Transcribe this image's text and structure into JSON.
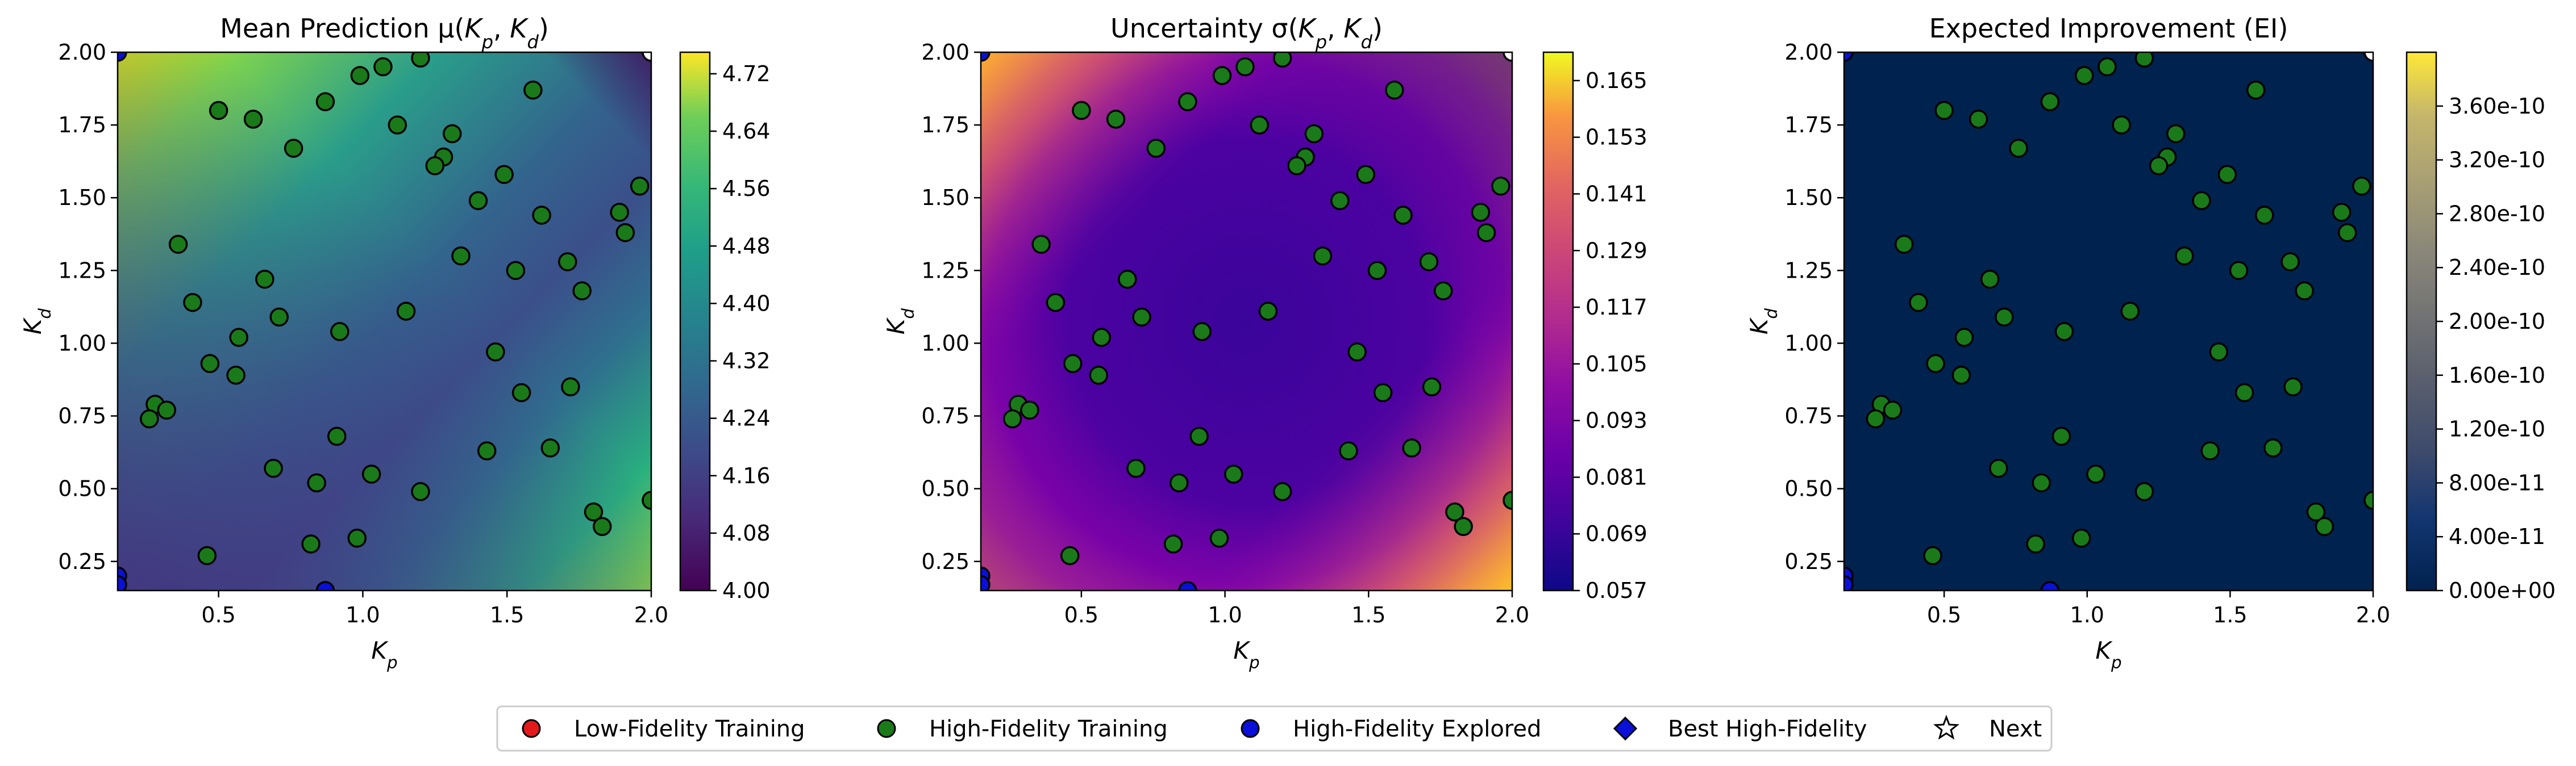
{
  "chart_data": [
    {
      "type": "heatmap",
      "title": "Mean Prediction μ(Kp, Kd)",
      "title_text": "Mean Prediction μ(",
      "xlabel": "Kp",
      "ylabel": "Kd",
      "xlim": [
        0.15,
        2.0
      ],
      "ylim": [
        0.15,
        2.0
      ],
      "xticks": [
        "0.5",
        "1.0",
        "1.5",
        "2.0"
      ],
      "yticks": [
        "0.25",
        "0.50",
        "0.75",
        "1.00",
        "1.25",
        "1.50",
        "1.75",
        "2.00"
      ],
      "colormap": "viridis",
      "colorbar_range": [
        4.0,
        4.75
      ],
      "colorbar_ticks": [
        "4.00",
        "4.08",
        "4.16",
        "4.24",
        "4.32",
        "4.40",
        "4.48",
        "4.56",
        "4.64",
        "4.72"
      ],
      "field": {
        "low_region": "center-left",
        "high_region": "top-left and bottom-right corners"
      }
    },
    {
      "type": "heatmap",
      "title": "Uncertainty σ(Kp, Kd)",
      "title_text": "Uncertainty σ(",
      "xlabel": "Kp",
      "ylabel": "Kd",
      "xlim": [
        0.15,
        2.0
      ],
      "ylim": [
        0.15,
        2.0
      ],
      "xticks": [
        "0.5",
        "1.0",
        "1.5",
        "2.0"
      ],
      "yticks": [
        "0.25",
        "0.50",
        "0.75",
        "1.00",
        "1.25",
        "1.50",
        "1.75",
        "2.00"
      ],
      "colormap": "plasma",
      "colorbar_range": [
        0.057,
        0.171
      ],
      "colorbar_ticks": [
        "0.057",
        "0.069",
        "0.081",
        "0.093",
        "0.105",
        "0.117",
        "0.129",
        "0.141",
        "0.153",
        "0.165"
      ],
      "field": {
        "low_region": "interior",
        "high_region": "top-left and bottom-right corners"
      }
    },
    {
      "type": "heatmap",
      "title": "Expected Improvement (EI)",
      "title_text": "Expected Improvement (EI)",
      "xlabel": "Kp",
      "ylabel": "Kd",
      "xlim": [
        0.15,
        2.0
      ],
      "ylim": [
        0.15,
        2.0
      ],
      "xticks": [
        "0.5",
        "1.0",
        "1.5",
        "2.0"
      ],
      "yticks": [
        "0.25",
        "0.50",
        "0.75",
        "1.00",
        "1.25",
        "1.50",
        "1.75",
        "2.00"
      ],
      "colormap": "cividis",
      "colorbar_range": [
        0,
        4e-10
      ],
      "colorbar_ticks": [
        "0.00e+00",
        "4.00e-11",
        "8.00e-11",
        "1.20e-10",
        "1.60e-10",
        "2.00e-10",
        "2.40e-10",
        "2.80e-10",
        "3.20e-10",
        "3.60e-10"
      ],
      "field": {
        "low_region": "everywhere (≈0)",
        "high_region": "none"
      }
    }
  ],
  "points": {
    "high_fidelity_training": [
      [
        0.5,
        1.8
      ],
      [
        0.62,
        1.77
      ],
      [
        0.76,
        1.67
      ],
      [
        0.87,
        1.83
      ],
      [
        0.99,
        1.92
      ],
      [
        1.07,
        1.95
      ],
      [
        1.2,
        1.98
      ],
      [
        1.12,
        1.75
      ],
      [
        1.31,
        1.72
      ],
      [
        1.28,
        1.64
      ],
      [
        1.25,
        1.61
      ],
      [
        1.49,
        1.58
      ],
      [
        1.59,
        1.87
      ],
      [
        1.4,
        1.49
      ],
      [
        1.62,
        1.44
      ],
      [
        1.89,
        1.45
      ],
      [
        1.96,
        1.54
      ],
      [
        1.91,
        1.38
      ],
      [
        1.34,
        1.3
      ],
      [
        1.53,
        1.25
      ],
      [
        1.71,
        1.28
      ],
      [
        1.76,
        1.18
      ],
      [
        1.15,
        1.11
      ],
      [
        0.66,
        1.22
      ],
      [
        0.41,
        1.14
      ],
      [
        0.36,
        1.34
      ],
      [
        0.71,
        1.09
      ],
      [
        0.92,
        1.04
      ],
      [
        0.57,
        1.02
      ],
      [
        0.47,
        0.93
      ],
      [
        0.56,
        0.89
      ],
      [
        1.46,
        0.97
      ],
      [
        1.55,
        0.83
      ],
      [
        1.72,
        0.85
      ],
      [
        0.28,
        0.79
      ],
      [
        0.32,
        0.77
      ],
      [
        0.26,
        0.74
      ],
      [
        0.91,
        0.68
      ],
      [
        1.43,
        0.63
      ],
      [
        1.65,
        0.64
      ],
      [
        0.69,
        0.57
      ],
      [
        1.03,
        0.55
      ],
      [
        0.84,
        0.52
      ],
      [
        1.2,
        0.49
      ],
      [
        1.8,
        0.42
      ],
      [
        1.83,
        0.37
      ],
      [
        2.0,
        0.46
      ],
      [
        0.82,
        0.31
      ],
      [
        0.98,
        0.33
      ],
      [
        0.46,
        0.27
      ]
    ],
    "high_fidelity_explored": [
      [
        0.15,
        0.2
      ],
      [
        0.15,
        0.17
      ],
      [
        0.87,
        0.15
      ],
      [
        0.15,
        2.0
      ]
    ],
    "corner_markers": [
      [
        2.0,
        2.0
      ]
    ]
  },
  "legend": {
    "items": [
      {
        "label": "Low-Fidelity Training",
        "marker": "circle",
        "color": "#e31a1c"
      },
      {
        "label": "High-Fidelity Training",
        "marker": "circle",
        "color": "#1a7a1a"
      },
      {
        "label": "High-Fidelity Explored",
        "marker": "circle",
        "color": "#0a10d8"
      },
      {
        "label": "Best High-Fidelity",
        "marker": "diamond",
        "color": "#0a10d8"
      },
      {
        "label": "Next",
        "marker": "star",
        "color": "#ffffff"
      }
    ]
  },
  "colors": {
    "training_fill": "#1a7a1a",
    "explored_fill": "#0a10d8",
    "marker_edge": "#000000"
  }
}
